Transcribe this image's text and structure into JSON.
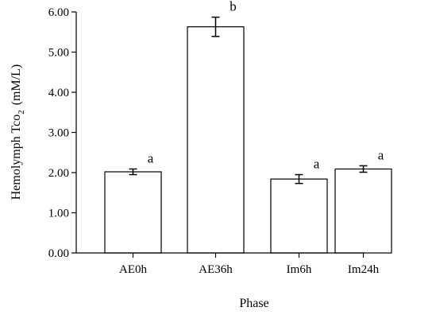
{
  "chart_data": {
    "type": "bar",
    "categories": [
      "AE0h",
      "AE36h",
      "Im6h",
      "Im24h"
    ],
    "values": [
      2.02,
      5.63,
      1.84,
      2.09
    ],
    "errors": [
      0.07,
      0.24,
      0.11,
      0.08
    ],
    "significance_labels": [
      "a",
      "b",
      "a",
      "a"
    ],
    "xlabel": "Phase",
    "ylabel": {
      "main": "Hemolymph Tco",
      "subscript": "2",
      "unit": "(mM/L)"
    },
    "ylim": [
      0,
      6
    ],
    "yticks": [
      "0.00",
      "1.00",
      "2.00",
      "3.00",
      "4.00",
      "5.00",
      "6.00"
    ],
    "grid": false,
    "bar_fill": "#ffffff",
    "bar_stroke": "#000000"
  }
}
